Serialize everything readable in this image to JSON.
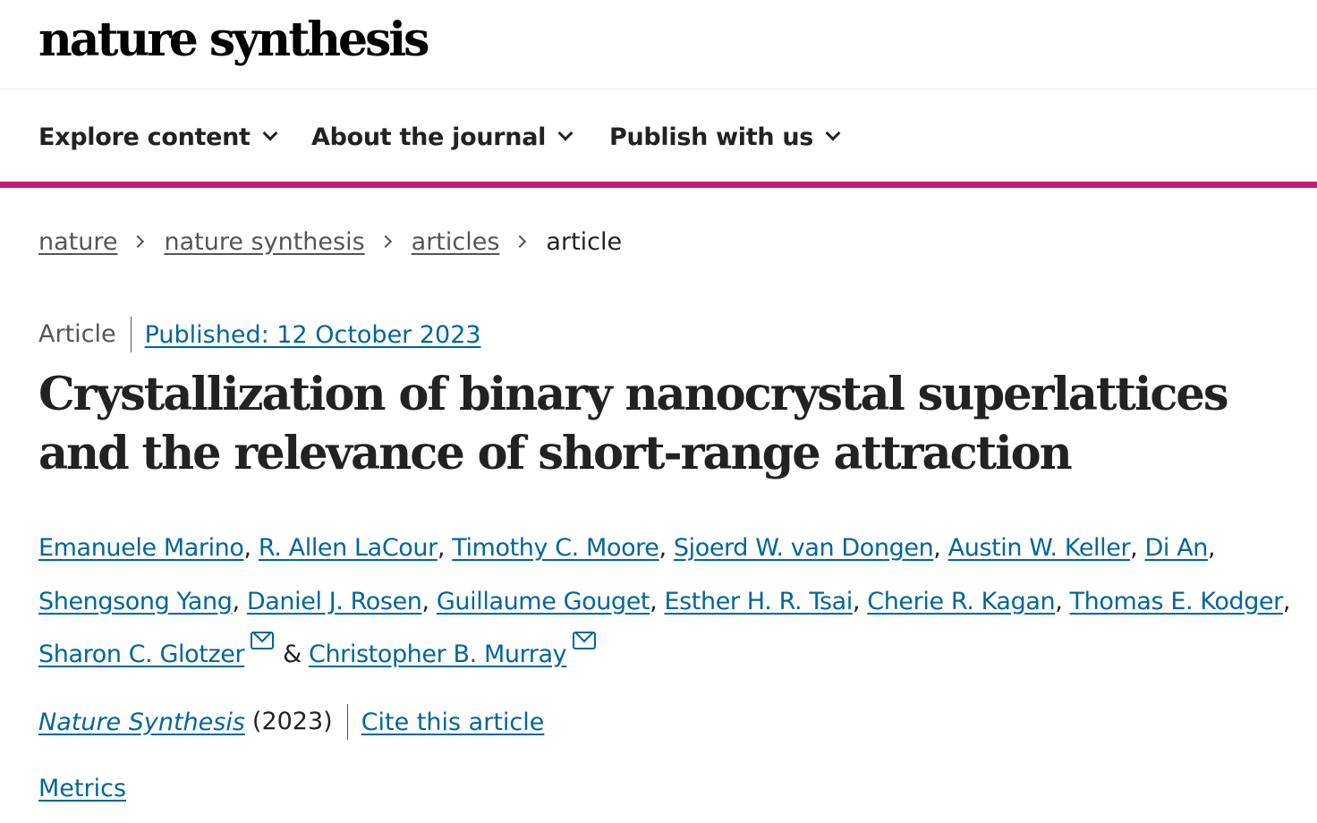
{
  "header": {
    "logo": "nature synthesis"
  },
  "nav": {
    "items": [
      {
        "label": "Explore content"
      },
      {
        "label": "About the journal"
      },
      {
        "label": "Publish with us"
      }
    ]
  },
  "breadcrumb": {
    "items": [
      "nature",
      "nature synthesis",
      "articles"
    ],
    "current": "article"
  },
  "article": {
    "type": "Article",
    "published": "Published: 12 October 2023",
    "title": "Crystallization of binary nanocrystal superlattices and the relevance of short-range attraction",
    "authors": [
      "Emanuele Marino",
      "R. Allen LaCour",
      "Timothy C. Moore",
      "Sjoerd W. van Dongen",
      "Austin W. Keller",
      "Di An",
      "Shengsong Yang",
      "Daniel J. Rosen",
      "Guillaume Gouget",
      "Esther H. R. Tsai",
      "Cherie R. Kagan",
      "Thomas E. Kodger",
      "Sharon C. Glotzer",
      "Christopher B. Murray"
    ],
    "separator": ",",
    "conjunction": "&",
    "journal": "Nature Synthesis",
    "year": "(2023)",
    "cite": "Cite this article",
    "metrics": "Metrics"
  },
  "colors": {
    "accent": "#c41c77",
    "link": "#006699",
    "text": "#222222",
    "muted": "#555555"
  },
  "icons": {
    "nav_dropdown": "chevron-down-icon",
    "breadcrumb_separator": "chevron-right-icon",
    "corresponding_author": "mail-icon"
  }
}
